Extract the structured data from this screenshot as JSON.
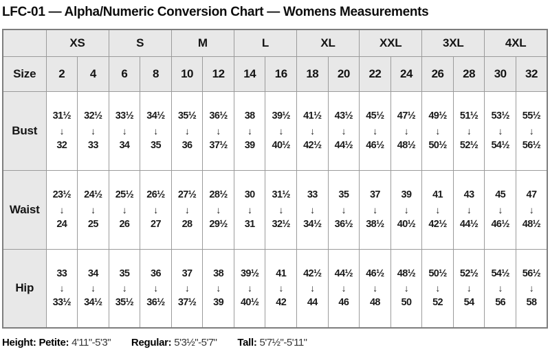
{
  "title": "LFC-01 — Alpha/Numeric Conversion Chart — Womens Measurements",
  "table": {
    "size_label": "Size",
    "arrow": "↓",
    "alpha_sizes": [
      "XS",
      "S",
      "M",
      "L",
      "XL",
      "XXL",
      "3XL",
      "4XL"
    ],
    "numeric_sizes": [
      "2",
      "4",
      "6",
      "8",
      "10",
      "12",
      "14",
      "16",
      "18",
      "20",
      "22",
      "24",
      "26",
      "28",
      "30",
      "32"
    ],
    "rows": [
      {
        "label": "Bust",
        "ranges": [
          {
            "from": "31½",
            "to": "32"
          },
          {
            "from": "32½",
            "to": "33"
          },
          {
            "from": "33½",
            "to": "34"
          },
          {
            "from": "34½",
            "to": "35"
          },
          {
            "from": "35½",
            "to": "36"
          },
          {
            "from": "36½",
            "to": "37½"
          },
          {
            "from": "38",
            "to": "39"
          },
          {
            "from": "39½",
            "to": "40½"
          },
          {
            "from": "41½",
            "to": "42½"
          },
          {
            "from": "43½",
            "to": "44½"
          },
          {
            "from": "45½",
            "to": "46½"
          },
          {
            "from": "47½",
            "to": "48½"
          },
          {
            "from": "49½",
            "to": "50½"
          },
          {
            "from": "51½",
            "to": "52½"
          },
          {
            "from": "53½",
            "to": "54½"
          },
          {
            "from": "55½",
            "to": "56½"
          }
        ]
      },
      {
        "label": "Waist",
        "ranges": [
          {
            "from": "23½",
            "to": "24"
          },
          {
            "from": "24½",
            "to": "25"
          },
          {
            "from": "25½",
            "to": "26"
          },
          {
            "from": "26½",
            "to": "27"
          },
          {
            "from": "27½",
            "to": "28"
          },
          {
            "from": "28½",
            "to": "29½"
          },
          {
            "from": "30",
            "to": "31"
          },
          {
            "from": "31½",
            "to": "32½"
          },
          {
            "from": "33",
            "to": "34½"
          },
          {
            "from": "35",
            "to": "36½"
          },
          {
            "from": "37",
            "to": "38½"
          },
          {
            "from": "39",
            "to": "40½"
          },
          {
            "from": "41",
            "to": "42½"
          },
          {
            "from": "43",
            "to": "44½"
          },
          {
            "from": "45",
            "to": "46½"
          },
          {
            "from": "47",
            "to": "48½"
          }
        ]
      },
      {
        "label": "Hip",
        "ranges": [
          {
            "from": "33",
            "to": "33½"
          },
          {
            "from": "34",
            "to": "34½"
          },
          {
            "from": "35",
            "to": "35½"
          },
          {
            "from": "36",
            "to": "36½"
          },
          {
            "from": "37",
            "to": "37½"
          },
          {
            "from": "38",
            "to": "39"
          },
          {
            "from": "39½",
            "to": "40½"
          },
          {
            "from": "41",
            "to": "42"
          },
          {
            "from": "42½",
            "to": "44"
          },
          {
            "from": "44½",
            "to": "46"
          },
          {
            "from": "46½",
            "to": "48"
          },
          {
            "from": "48½",
            "to": "50"
          },
          {
            "from": "50½",
            "to": "52"
          },
          {
            "from": "52½",
            "to": "54"
          },
          {
            "from": "54½",
            "to": "56"
          },
          {
            "from": "56½",
            "to": "58"
          }
        ]
      }
    ]
  },
  "footer": {
    "height_label": "Height:",
    "segments": [
      {
        "label": "Petite:",
        "value": "4'11\"-5'3\""
      },
      {
        "label": "Regular:",
        "value": "5'3½\"-5'7\""
      },
      {
        "label": "Tall:",
        "value": "5'7½\"-5'11\""
      }
    ]
  },
  "colors": {
    "header_bg": "#e8e8e8",
    "border_inner": "#9a9a9a",
    "border_outer": "#7d7d7d",
    "text": "#111111"
  }
}
